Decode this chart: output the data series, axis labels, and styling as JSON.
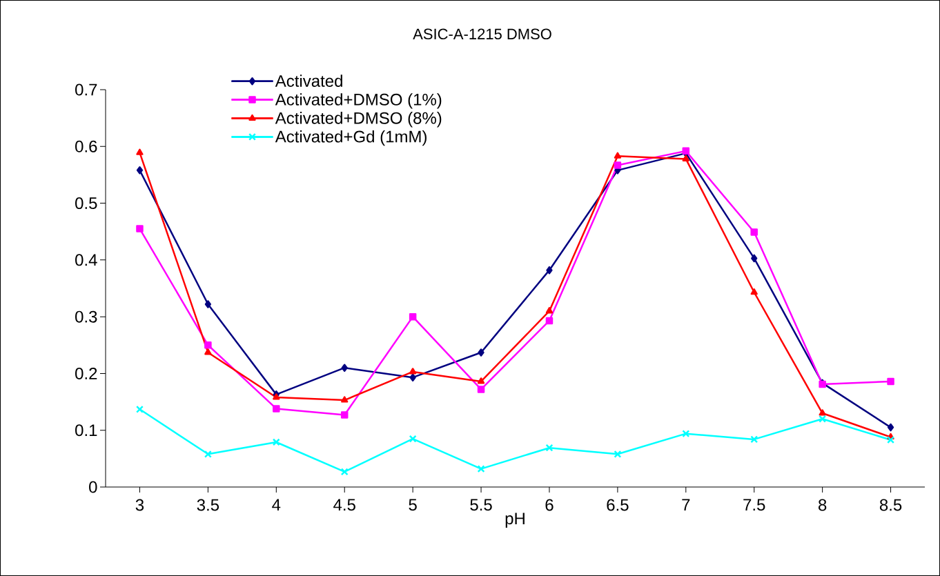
{
  "chart_data": {
    "type": "line",
    "title": "ASIC-A-1215 DMSO",
    "xlabel": "pH",
    "categories": [
      "3",
      "3.5",
      "4",
      "4.5",
      "5",
      "5.5",
      "6",
      "6.5",
      "7",
      "7.5",
      "8",
      "8.5"
    ],
    "series": [
      {
        "name": "Activated",
        "color": "#000080",
        "marker": "diamond",
        "values": [
          0.558,
          0.322,
          0.163,
          0.21,
          0.193,
          0.237,
          0.382,
          0.558,
          0.588,
          0.403,
          0.183,
          0.105
        ]
      },
      {
        "name": "Activated+DMSO (1%)",
        "color": "#ff00ff",
        "marker": "square",
        "values": [
          0.455,
          0.25,
          0.138,
          0.127,
          0.3,
          0.172,
          0.293,
          0.567,
          0.592,
          0.449,
          0.181,
          0.186
        ]
      },
      {
        "name": "Activated+DMSO (8%)",
        "color": "#ff0000",
        "marker": "triangle",
        "values": [
          0.589,
          0.237,
          0.158,
          0.153,
          0.203,
          0.186,
          0.31,
          0.583,
          0.578,
          0.343,
          0.13,
          0.088
        ]
      },
      {
        "name": "Activated+Gd (1mM)",
        "color": "#00ffff",
        "marker": "cross",
        "values": [
          0.137,
          0.058,
          0.079,
          0.027,
          0.085,
          0.032,
          0.069,
          0.058,
          0.094,
          0.084,
          0.12,
          0.083
        ]
      }
    ],
    "ylim": [
      0,
      0.7
    ],
    "yticks": [
      0,
      0.1,
      0.2,
      0.3,
      0.4,
      0.5,
      0.6,
      0.7
    ],
    "grid": false,
    "legend": "top",
    "line_style": "solid"
  }
}
